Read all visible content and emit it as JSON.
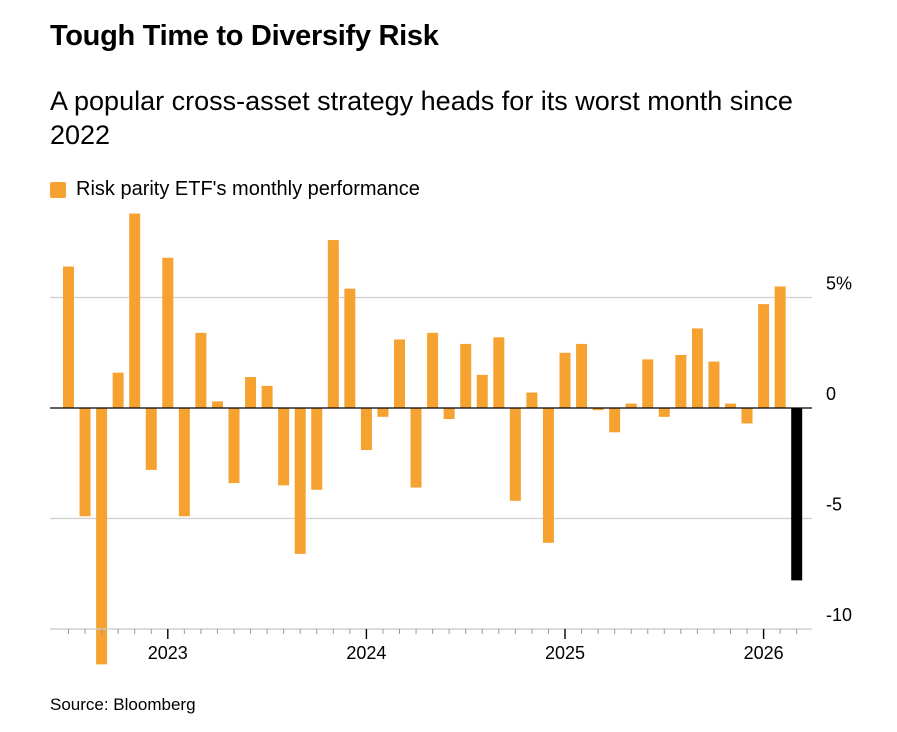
{
  "title": "Tough Time to Diversify Risk",
  "subtitle": "A popular cross-asset strategy heads for its worst month since 2022",
  "legend": {
    "label": "Risk parity ETF's monthly performance"
  },
  "source": "Source: Bloomberg",
  "colors": {
    "bar": "#f6a231",
    "highlight": "#000000",
    "grid": "#cfcfcf",
    "axis": "#000000"
  },
  "chart_data": {
    "type": "bar",
    "title": "Tough Time to Diversify Risk",
    "xlabel": "",
    "ylabel": "",
    "ylim": [
      -10,
      8.5
    ],
    "yticks": [
      5,
      0,
      -5,
      -10
    ],
    "ytick_labels": [
      "5%",
      "0",
      "-5",
      "-10"
    ],
    "xtick_labels": [
      "2023",
      "2024",
      "2025",
      "2026"
    ],
    "xtick_months": [
      "2023-01",
      "2024-01",
      "2025-01",
      "2026-01"
    ],
    "categories": [
      "2022-07",
      "2022-08",
      "2022-09",
      "2022-10",
      "2022-11",
      "2022-12",
      "2023-01",
      "2023-02",
      "2023-03",
      "2023-04",
      "2023-05",
      "2023-06",
      "2023-07",
      "2023-08",
      "2023-09",
      "2023-10",
      "2023-11",
      "2023-12",
      "2024-01",
      "2024-02",
      "2024-03",
      "2024-04",
      "2024-05",
      "2024-06",
      "2024-07",
      "2024-08",
      "2024-09",
      "2024-10",
      "2024-11",
      "2024-12",
      "2025-01",
      "2025-02",
      "2025-03",
      "2025-04",
      "2025-05",
      "2025-06",
      "2025-07",
      "2025-08",
      "2025-09",
      "2025-10",
      "2025-11",
      "2025-12",
      "2026-01",
      "2026-02",
      "2026-03"
    ],
    "values": [
      6.4,
      -4.9,
      -11.6,
      1.6,
      8.8,
      -2.8,
      6.8,
      -4.9,
      3.4,
      0.3,
      -3.4,
      1.4,
      1.0,
      -3.5,
      -6.6,
      -3.7,
      7.6,
      5.4,
      -1.9,
      -0.4,
      3.1,
      -3.6,
      3.4,
      -0.5,
      2.9,
      1.5,
      3.2,
      -4.2,
      0.7,
      -6.1,
      2.5,
      2.9,
      -0.1,
      -1.1,
      0.2,
      2.2,
      -0.4,
      2.4,
      3.6,
      2.1,
      0.2,
      -0.7,
      4.7,
      5.5,
      -7.8
    ],
    "highlight_index": 44
  }
}
